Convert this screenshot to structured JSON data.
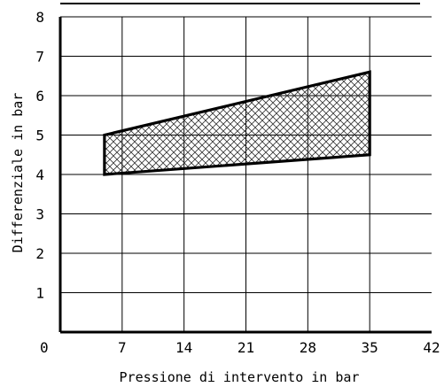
{
  "chart_data": {
    "type": "area",
    "title": "",
    "xlabel": "Pressione di intervento in bar",
    "ylabel": "Differenziale in bar",
    "xlim": [
      0,
      42
    ],
    "ylim": [
      0,
      8
    ],
    "x_ticks": [
      0,
      7,
      14,
      21,
      28,
      35,
      42
    ],
    "x_tick_labels": [
      "0",
      "7",
      "14",
      "21",
      "28",
      "35",
      "42"
    ],
    "y_ticks": [
      0,
      1,
      2,
      3,
      4,
      5,
      6,
      7,
      8
    ],
    "y_tick_labels": [
      "",
      "1",
      "2",
      "3",
      "4",
      "5",
      "6",
      "7",
      "8"
    ],
    "grid": true,
    "legend": "none",
    "region": {
      "x": [
        5,
        35
      ],
      "lower": [
        4.0,
        4.5
      ],
      "upper": [
        5.0,
        6.6
      ],
      "fill_pattern": "crosshatch"
    }
  }
}
